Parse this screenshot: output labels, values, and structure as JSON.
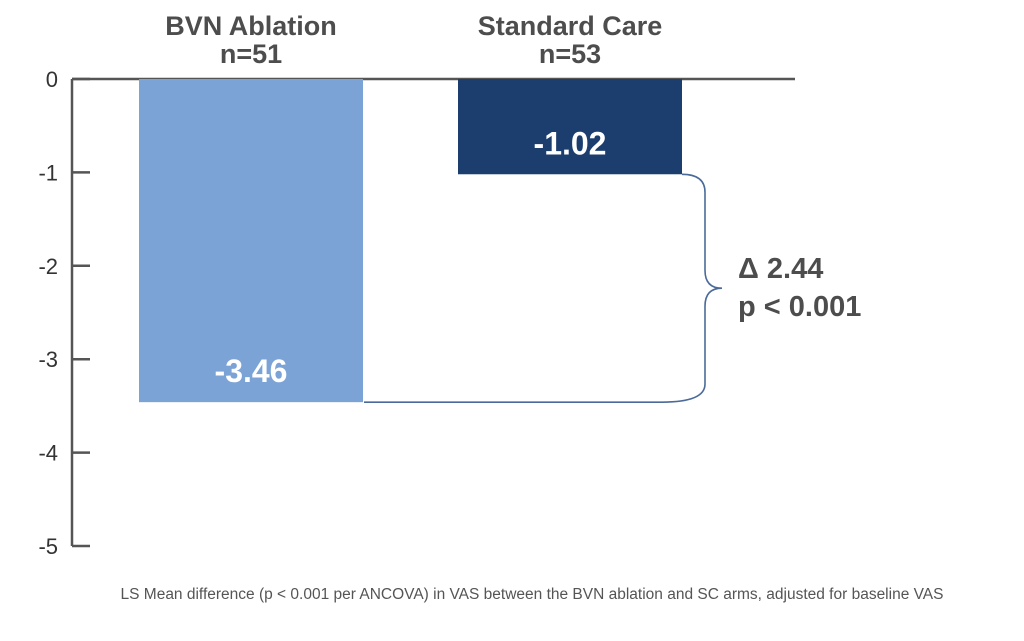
{
  "chart_data": {
    "type": "bar",
    "categories": [
      "BVN Ablation",
      "Standard Care"
    ],
    "sample_sizes": [
      "n=51",
      "n=53"
    ],
    "values": [
      -3.46,
      -1.02
    ],
    "value_labels": [
      "-3.46",
      "-1.02"
    ],
    "colors": [
      "#7ba3d6",
      "#1c3e6e"
    ],
    "ylim": [
      -5,
      0
    ],
    "yticks": [
      "0",
      "-1",
      "-2",
      "-3",
      "-4",
      "-5"
    ],
    "ytick_values": [
      0,
      -1,
      -2,
      -3,
      -4,
      -5
    ],
    "annotation": {
      "delta": "Δ 2.44",
      "p_value": "p < 0.001"
    },
    "grid": false
  },
  "footnote": "LS Mean difference (p < 0.001 per ANCOVA) in VAS between the BVN ablation and SC arms, adjusted for baseline VAS"
}
